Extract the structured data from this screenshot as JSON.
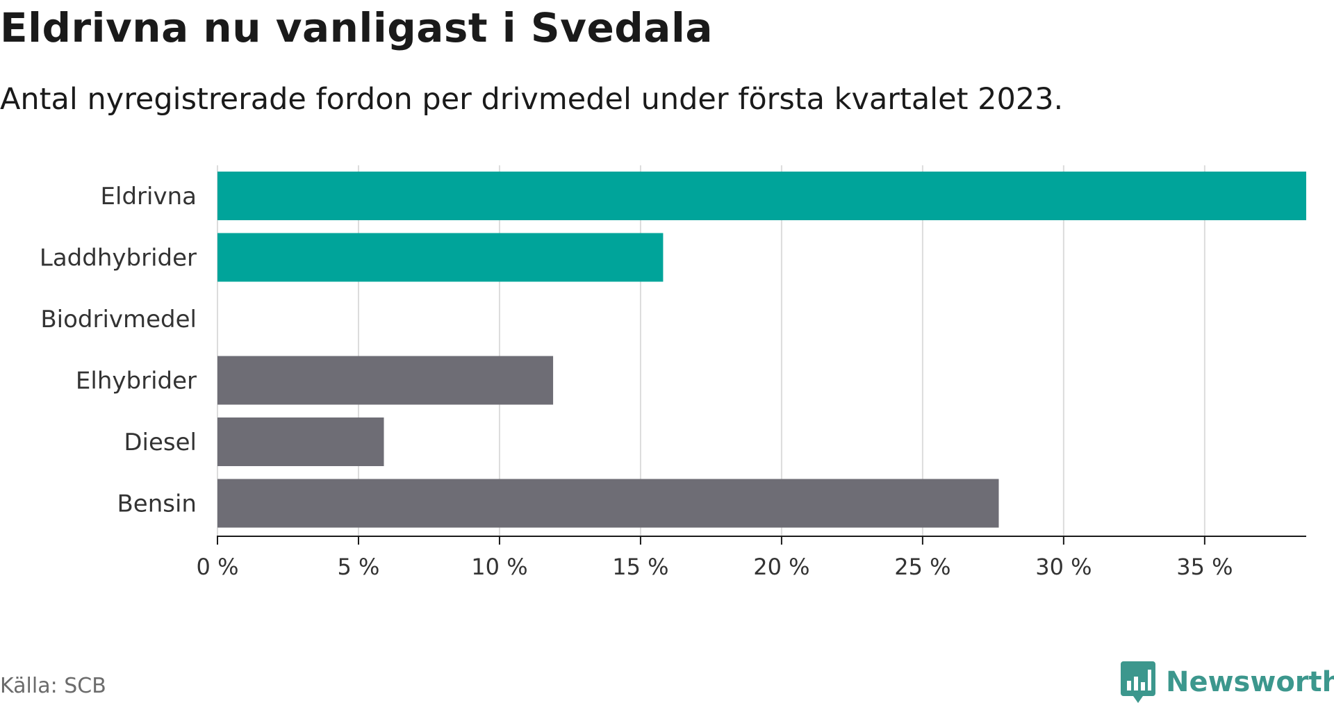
{
  "title": "Eldrivna nu vanligast i Svedala",
  "subtitle": "Antal nyregistrerade fordon per drivmedel under första kvartalet 2023.",
  "source": "Källa: SCB",
  "logo": {
    "text": "Newsworthy",
    "icon": "newsworthy-logo-icon",
    "color": "#3c978d"
  },
  "colors": {
    "highlight": "#00a49a",
    "other": "#6e6d75",
    "grid": "#dcdcdc",
    "axis": "#1a1a1a"
  },
  "chart_data": {
    "type": "bar",
    "orientation": "horizontal",
    "categories": [
      "Eldrivna",
      "Laddhybrider",
      "Biodrivmedel",
      "Elhybrider",
      "Diesel",
      "Bensin"
    ],
    "values": [
      38.6,
      15.8,
      0,
      11.9,
      5.9,
      27.7
    ],
    "bar_colors": [
      "#00a49a",
      "#00a49a",
      "#00a49a",
      "#6e6d75",
      "#6e6d75",
      "#6e6d75"
    ],
    "xlim": [
      0,
      38.6
    ],
    "xticks": [
      0,
      5,
      10,
      15,
      20,
      25,
      30,
      35
    ],
    "xtick_labels": [
      "0 %",
      "5 %",
      "10 %",
      "15 %",
      "20 %",
      "25 %",
      "30 %",
      "35 %"
    ],
    "grid": true,
    "xlabel": "",
    "ylabel": ""
  }
}
